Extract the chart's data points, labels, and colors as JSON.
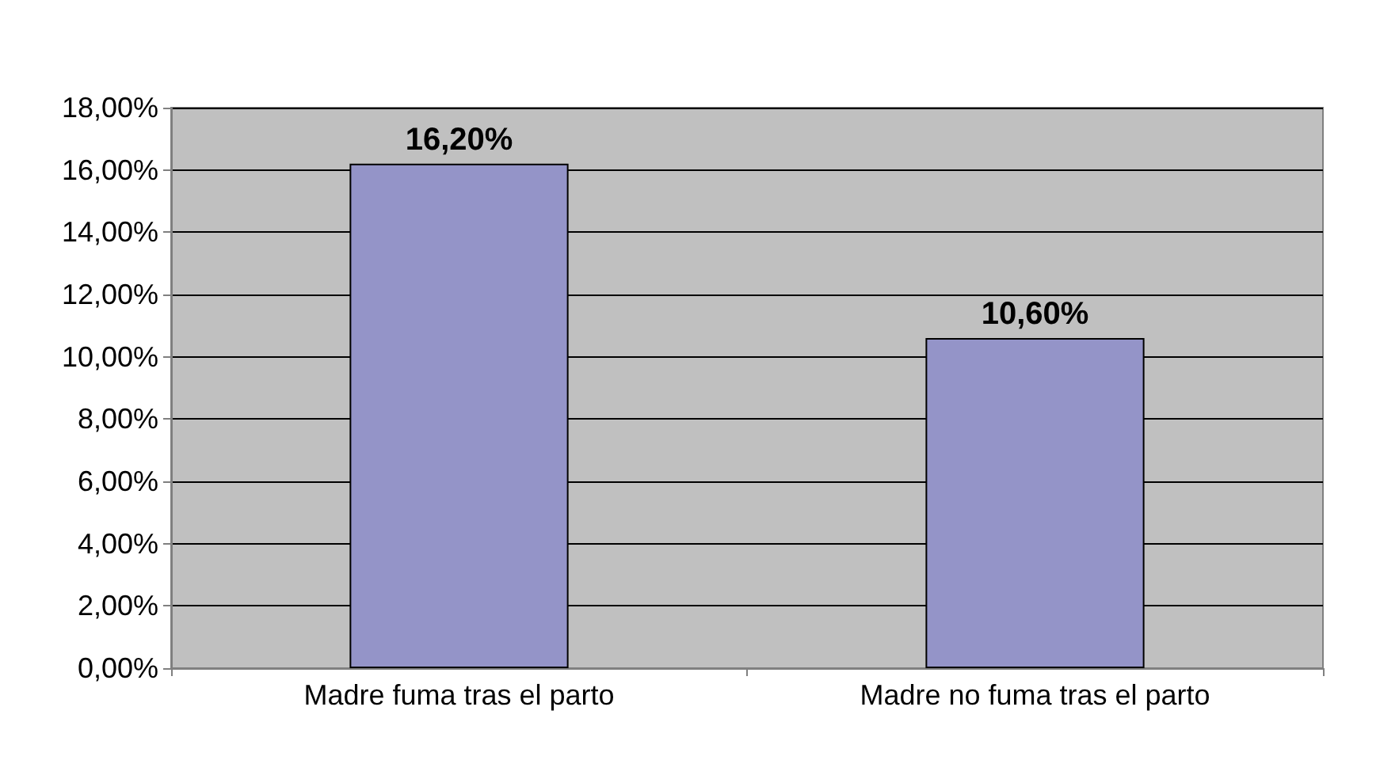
{
  "chart_data": {
    "type": "bar",
    "categories": [
      "Madre fuma tras el parto",
      "Madre no fuma tras el parto"
    ],
    "values": [
      16.2,
      10.6
    ],
    "value_labels": [
      "16,20%",
      "10,60%"
    ],
    "color": "#9494c8",
    "ylim": [
      0,
      18
    ],
    "yticks": [
      {
        "value": 0,
        "label": "0,00%"
      },
      {
        "value": 2,
        "label": "2,00%"
      },
      {
        "value": 4,
        "label": "4,00%"
      },
      {
        "value": 6,
        "label": "6,00%"
      },
      {
        "value": 8,
        "label": "8,00%"
      },
      {
        "value": 10,
        "label": "10,00%"
      },
      {
        "value": 12,
        "label": "12,00%"
      },
      {
        "value": 14,
        "label": "14,00%"
      },
      {
        "value": 16,
        "label": "16,00%"
      },
      {
        "value": 18,
        "label": "18,00%"
      }
    ],
    "grid": true
  }
}
